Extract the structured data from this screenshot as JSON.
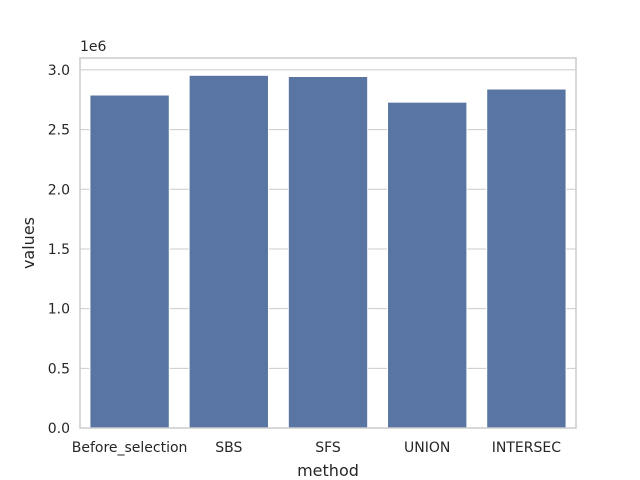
{
  "chart_data": {
    "type": "bar",
    "title": "",
    "xlabel": "method",
    "ylabel": "values",
    "y_offset_label": "1e6",
    "y_scale": 1000000,
    "categories": [
      "Before_selection",
      "SBS",
      "SFS",
      "UNION",
      "INTERSEC"
    ],
    "values": [
      2790000,
      2955000,
      2945000,
      2730000,
      2840000
    ],
    "ylim": [
      0,
      3100000
    ],
    "yticks": [
      0,
      500000,
      1000000,
      1500000,
      2000000,
      2500000,
      3000000
    ],
    "ytick_labels": [
      "0.0",
      "0.5",
      "1.0",
      "1.5",
      "2.0",
      "2.5",
      "3.0"
    ],
    "grid": true,
    "colors": {
      "bar": "#5875a4",
      "bar_edge": "#ffffff",
      "grid": "#cccccc",
      "axes_edge": "#cccccc",
      "text": "#262626"
    }
  }
}
